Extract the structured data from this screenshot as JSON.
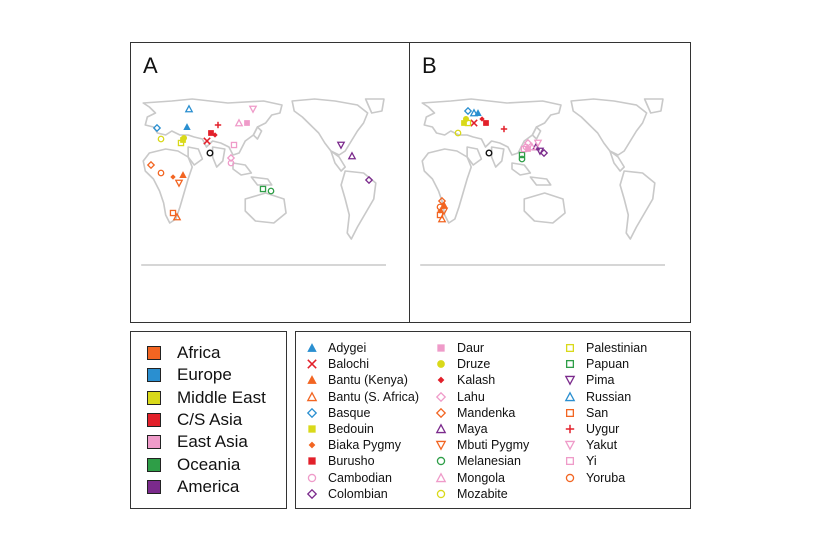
{
  "panels": [
    {
      "letter": "A"
    },
    {
      "letter": "B"
    }
  ],
  "regions": [
    {
      "label": "Africa",
      "color": "#f26522"
    },
    {
      "label": "Europe",
      "color": "#2a8fd0"
    },
    {
      "label": "Middle East",
      "color": "#d9d91a"
    },
    {
      "label": "C/S Asia",
      "color": "#e2202a"
    },
    {
      "label": "East Asia",
      "color": "#ef9bc9"
    },
    {
      "label": "Oceania",
      "color": "#2e9e47"
    },
    {
      "label": "America",
      "color": "#7b2a8c"
    }
  ],
  "populations": [
    {
      "label": "Adygei",
      "shape": "triangle-filled",
      "color": "#2a8fd0"
    },
    {
      "label": "Balochi",
      "shape": "cross-x",
      "color": "#e2202a"
    },
    {
      "label": "Bantu (Kenya)",
      "shape": "triangle-filled",
      "color": "#f26522"
    },
    {
      "label": "Bantu (S. Africa)",
      "shape": "triangle-open",
      "color": "#f26522"
    },
    {
      "label": "Basque",
      "shape": "diamond-open",
      "color": "#2a8fd0"
    },
    {
      "label": "Bedouin",
      "shape": "square-filled",
      "color": "#d9d91a"
    },
    {
      "label": "Biaka Pygmy",
      "shape": "diamond-filled",
      "color": "#f26522"
    },
    {
      "label": "Burusho",
      "shape": "square-filled",
      "color": "#e2202a"
    },
    {
      "label": "Cambodian",
      "shape": "circle-open",
      "color": "#ef9bc9"
    },
    {
      "label": "Colombian",
      "shape": "diamond-open",
      "color": "#7b2a8c"
    },
    {
      "label": "Daur",
      "shape": "square-filled",
      "color": "#ef9bc9"
    },
    {
      "label": "Druze",
      "shape": "circle-filled",
      "color": "#d9d91a"
    },
    {
      "label": "Kalash",
      "shape": "diamond-filled",
      "color": "#e2202a"
    },
    {
      "label": "Lahu",
      "shape": "diamond-open",
      "color": "#ef9bc9"
    },
    {
      "label": "Mandenka",
      "shape": "diamond-open",
      "color": "#f26522"
    },
    {
      "label": "Maya",
      "shape": "triangle-open",
      "color": "#7b2a8c"
    },
    {
      "label": "Mbuti Pygmy",
      "shape": "triangle-down-open",
      "color": "#f26522"
    },
    {
      "label": "Melanesian",
      "shape": "circle-open",
      "color": "#2e9e47"
    },
    {
      "label": "Mongola",
      "shape": "triangle-open",
      "color": "#ef9bc9"
    },
    {
      "label": "Mozabite",
      "shape": "circle-open",
      "color": "#d9d91a"
    },
    {
      "label": "Palestinian",
      "shape": "square-open",
      "color": "#d9d91a"
    },
    {
      "label": "Papuan",
      "shape": "square-open",
      "color": "#2e9e47"
    },
    {
      "label": "Pima",
      "shape": "triangle-down-open",
      "color": "#7b2a8c"
    },
    {
      "label": "Russian",
      "shape": "triangle-open",
      "color": "#2a8fd0"
    },
    {
      "label": "San",
      "shape": "square-open",
      "color": "#f26522"
    },
    {
      "label": "Uygur",
      "shape": "plus",
      "color": "#e2202a"
    },
    {
      "label": "Yakut",
      "shape": "triangle-down-open",
      "color": "#ef9bc9"
    },
    {
      "label": "Yi",
      "shape": "square-open",
      "color": "#ef9bc9"
    },
    {
      "label": "Yoruba",
      "shape": "circle-open",
      "color": "#f26522"
    }
  ]
}
